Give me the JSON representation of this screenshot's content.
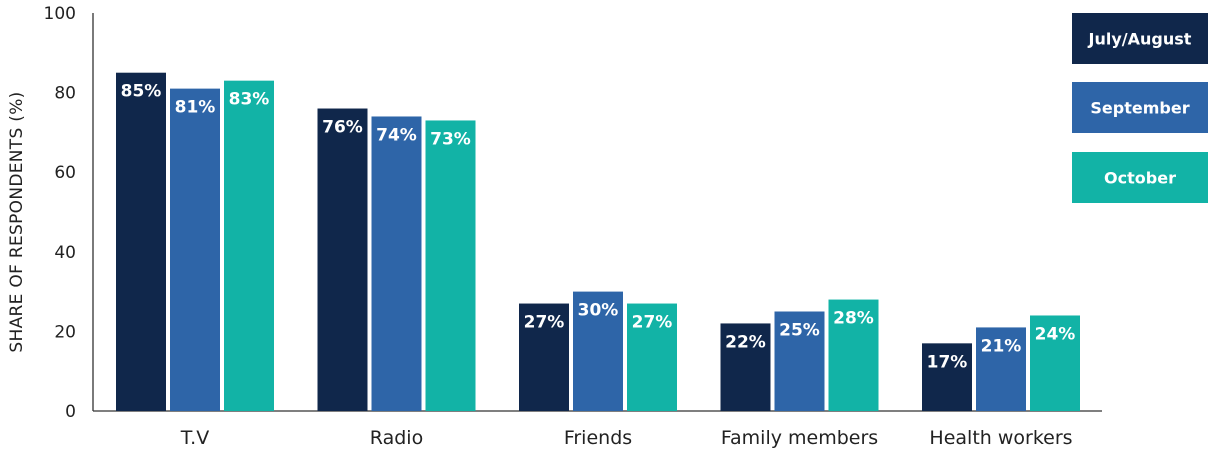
{
  "chart_data": {
    "type": "bar",
    "categories": [
      "T.V",
      "Radio",
      "Friends",
      "Family members",
      "Health workers"
    ],
    "series": [
      {
        "name": "July/August",
        "values": [
          85,
          76,
          27,
          22,
          17
        ],
        "labels": [
          "85%",
          "76%",
          "27%",
          "22%",
          "17%"
        ],
        "color": "#10274b"
      },
      {
        "name": "September",
        "values": [
          81,
          74,
          30,
          25,
          21
        ],
        "labels": [
          "81%",
          "74%",
          "30%",
          "25%",
          "21%"
        ],
        "color": "#2e65a8"
      },
      {
        "name": "October",
        "values": [
          83,
          73,
          27,
          28,
          24
        ],
        "labels": [
          "83%",
          "73%",
          "27%",
          "28%",
          "24%"
        ],
        "color": "#12b3a6"
      }
    ],
    "ylabel": "SHARE OF RESPONDENTS (%)",
    "xlabel": "",
    "ylim": [
      0,
      100
    ],
    "yticks": [
      0,
      20,
      40,
      60,
      80,
      100
    ],
    "grid": false,
    "legend_position": "right"
  }
}
